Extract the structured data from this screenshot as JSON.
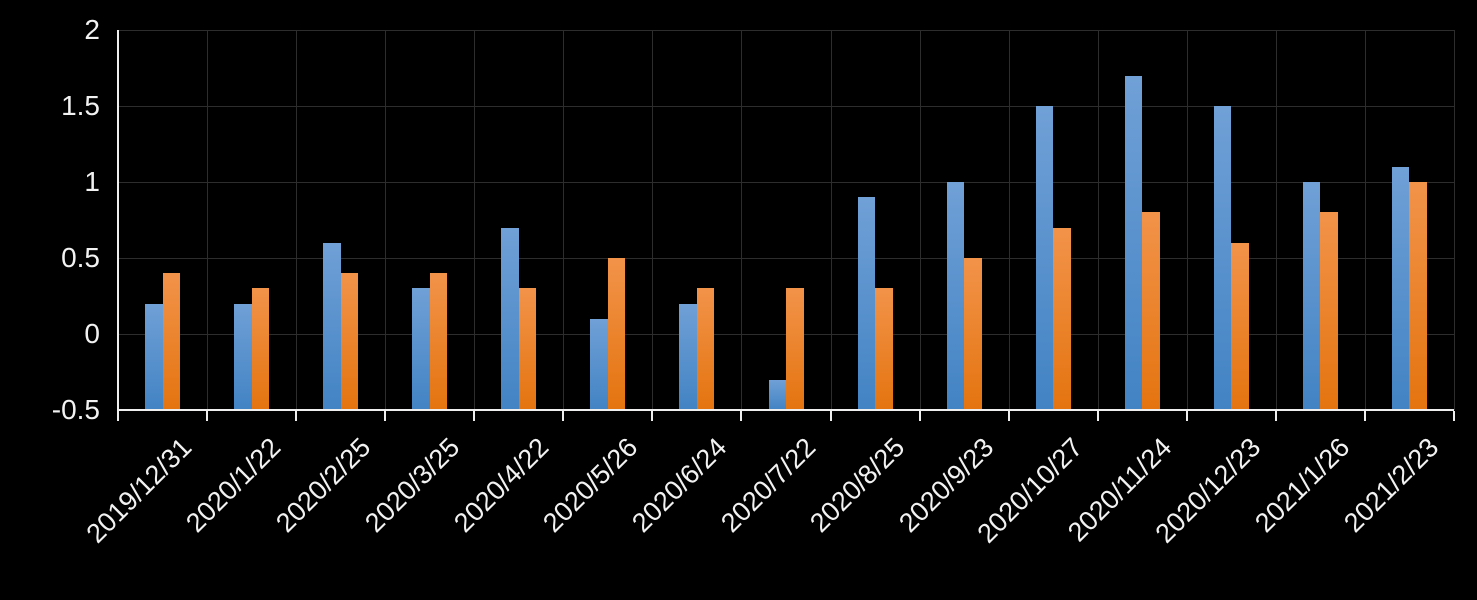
{
  "chart_data": {
    "type": "bar",
    "title": "",
    "xlabel": "",
    "ylabel": "",
    "legend": "none",
    "background_color": "#000000",
    "gridline_color": "#2d2d2d",
    "axis_color": "#efefef",
    "label_color": "#f2f2f2",
    "grid": true,
    "bar_base": -0.5,
    "ylim": [
      -0.5,
      2
    ],
    "ytick_interval": 0.5,
    "ytick_labels": [
      "2",
      "1.5",
      "1",
      "0.5",
      "0",
      "-0.5"
    ],
    "categories": [
      "2019/12/31",
      "2020/1/22",
      "2020/2/25",
      "2020/3/25",
      "2020/4/22",
      "2020/5/26",
      "2020/6/24",
      "2020/7/22",
      "2020/8/25",
      "2020/9/23",
      "2020/10/27",
      "2020/11/24",
      "2020/12/23",
      "2021/1/26",
      "2021/2/23"
    ],
    "series": [
      {
        "name": "blue-series",
        "color_top": "#70A0D6",
        "color_bottom": "#4283C4",
        "values": [
          0.2,
          0.2,
          0.6,
          0.3,
          0.7,
          0.1,
          0.2,
          -0.3,
          0.9,
          1.0,
          1.5,
          1.7,
          1.5,
          1.0,
          1.1
        ]
      },
      {
        "name": "orange-series",
        "color_top": "#F2934A",
        "color_bottom": "#E4740F",
        "values": [
          0.4,
          0.3,
          0.4,
          0.4,
          0.3,
          0.5,
          0.3,
          0.3,
          0.3,
          0.5,
          0.7,
          0.8,
          0.6,
          0.8,
          1.0
        ]
      }
    ]
  }
}
